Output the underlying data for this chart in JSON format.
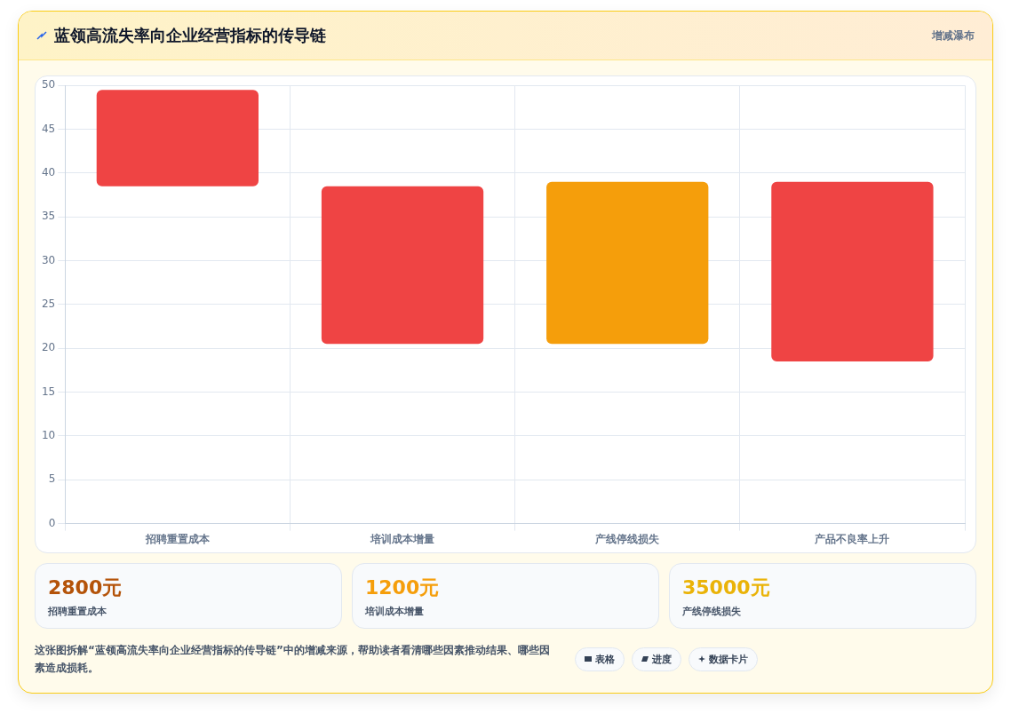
{
  "chart_data": {
    "type": "bar",
    "title": "蓝领高流失率向企业经营指标的传导链",
    "subtitle": "增减瀑布",
    "categories": [
      "招聘重置成本",
      "培训成本增量",
      "产线停线损失",
      "产品不良率上升"
    ],
    "values": [
      11,
      18,
      18.5,
      20.5
    ],
    "base": [
      38.5,
      20.5,
      20.5,
      18.5
    ],
    "colors": [
      "#ef4444",
      "#ef4444",
      "#f59e0b",
      "#ef4444"
    ],
    "ylim": [
      0,
      50
    ],
    "yticks": [
      0,
      5,
      10,
      15,
      20,
      25,
      30,
      35,
      40,
      45,
      50
    ],
    "grid": true,
    "legend": false,
    "annotations": [
      "2800元",
      "招聘重置成本",
      "1200元",
      "培训成本增量",
      "35000元",
      "产线停线损失",
      "这张图拆解“蓝领高流失率向企业经营指标的传导链”中的增减来源，帮助读者看清哪些因素推动结果、哪些因素造成损耗。",
      "表格",
      "进度",
      "数据卡片"
    ]
  }
}
